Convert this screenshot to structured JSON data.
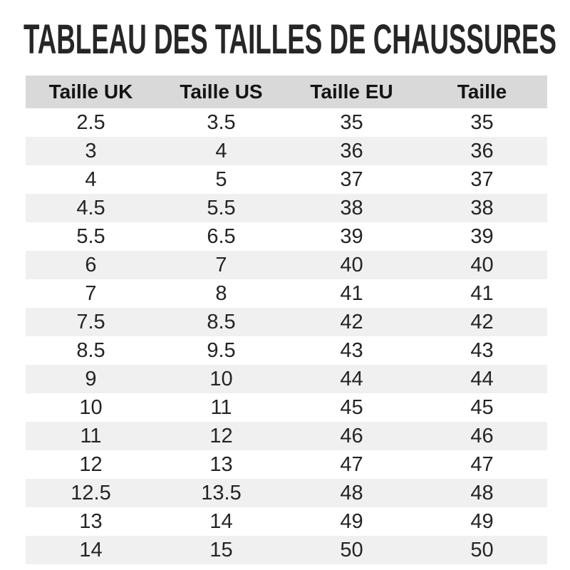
{
  "title": "TABLEAU DES TAILLES DE CHAUSSURES",
  "chart_data": {
    "type": "table",
    "title": "TABLEAU DES TAILLES DE CHAUSSURES",
    "columns": [
      "Taille UK",
      "Taille US",
      "Taille EU",
      "Taille"
    ],
    "rows": [
      [
        "2.5",
        "3.5",
        "35",
        "35"
      ],
      [
        "3",
        "4",
        "36",
        "36"
      ],
      [
        "4",
        "5",
        "37",
        "37"
      ],
      [
        "4.5",
        "5.5",
        "38",
        "38"
      ],
      [
        "5.5",
        "6.5",
        "39",
        "39"
      ],
      [
        "6",
        "7",
        "40",
        "40"
      ],
      [
        "7",
        "8",
        "41",
        "41"
      ],
      [
        "7.5",
        "8.5",
        "42",
        "42"
      ],
      [
        "8.5",
        "9.5",
        "43",
        "43"
      ],
      [
        "9",
        "10",
        "44",
        "44"
      ],
      [
        "10",
        "11",
        "45",
        "45"
      ],
      [
        "11",
        "12",
        "46",
        "46"
      ],
      [
        "12",
        "13",
        "47",
        "47"
      ],
      [
        "12.5",
        "13.5",
        "48",
        "48"
      ],
      [
        "13",
        "14",
        "49",
        "49"
      ],
      [
        "14",
        "15",
        "50",
        "50"
      ]
    ],
    "layout": {
      "zebra_striping": true,
      "header_position": "top",
      "text_align": "center"
    }
  },
  "colors": {
    "header_bg": "#d9d9d9",
    "row_alt_bg": "#f0f0f0",
    "header_text": "#141414",
    "cell_text": "#242424",
    "title_text": "#262626",
    "page_bg": "#ffffff"
  }
}
